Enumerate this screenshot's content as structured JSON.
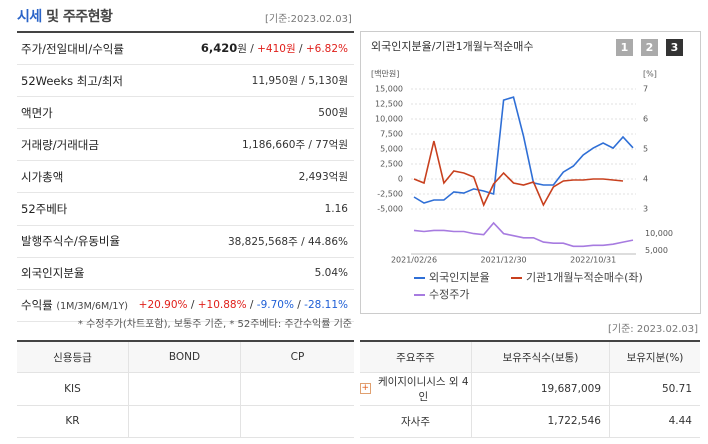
{
  "header": {
    "title_accent": "시세",
    "title_rest": "및 주주현황",
    "date": "[기준:2023.02.03]"
  },
  "summary": {
    "rows": [
      {
        "label": "주가/전일대비/수익률",
        "value": [
          {
            "text": "6,420",
            "bold": true
          },
          {
            "text": "원 / "
          },
          {
            "text": "+410원",
            "color": "#e0201b"
          },
          {
            "text": " / "
          },
          {
            "text": "+6.82%",
            "color": "#e0201b"
          }
        ]
      },
      {
        "label": "52Weeks 최고/최저",
        "value": [
          {
            "text": "11,950원 / 5,130원"
          }
        ]
      },
      {
        "label": "액면가",
        "value": [
          {
            "text": "500원"
          }
        ]
      },
      {
        "label": "거래량/거래대금",
        "value": [
          {
            "text": "1,186,660주 / 77억원"
          }
        ]
      },
      {
        "label": "시가총액",
        "value": [
          {
            "text": "2,493억원"
          }
        ]
      },
      {
        "label": "52주베타",
        "value": [
          {
            "text": "1.16"
          }
        ]
      },
      {
        "label": "발행주식수/유동비율",
        "value": [
          {
            "text": "38,825,568주 / 44.86%"
          }
        ]
      },
      {
        "label": "외국인지분율",
        "value": [
          {
            "text": "5.04%"
          }
        ]
      },
      {
        "label": "수익률",
        "label_note": "(1M/3M/6M/1Y)",
        "value": [
          {
            "text": "+20.90%",
            "color": "#e0201b"
          },
          {
            "text": " / "
          },
          {
            "text": "+10.88%",
            "color": "#e0201b"
          },
          {
            "text": " / "
          },
          {
            "text": "-9.70%",
            "color": "#1f5fd6"
          },
          {
            "text": " / "
          },
          {
            "text": "-28.11%",
            "color": "#1f5fd6"
          }
        ]
      }
    ],
    "footnote": "* 수정주가(차트포함), 보통주 기준, * 52주베타: 주간수익률 기준"
  },
  "panel": {
    "tabs": [
      "1",
      "2",
      "3"
    ],
    "active_tab": 2
  },
  "chart_data": [
    {
      "type": "line",
      "title": "외국인지분율/기관1개월누적순매수",
      "y_label": "[백만원]",
      "y2_label": "[%]",
      "categories": [
        "2021/02/26",
        null,
        null,
        null,
        null,
        null,
        null,
        null,
        null,
        "2021/12/30",
        null,
        null,
        null,
        null,
        null,
        null,
        null,
        null,
        "2022/10/31",
        null,
        null,
        null,
        null
      ],
      "ylim": [
        -5000,
        15000
      ],
      "yticks": [
        {
          "value": 15000,
          "label": "15,000"
        },
        {
          "value": 12500,
          "label": "12,500"
        },
        {
          "value": 10000,
          "label": "10,000"
        },
        {
          "value": 7500,
          "label": "7,500"
        },
        {
          "value": 5000,
          "label": "5,000"
        },
        {
          "value": 2500,
          "label": "2,500"
        },
        0,
        {
          "value": -2500,
          "label": "-2,500"
        },
        {
          "value": -5000,
          "label": "-5,000"
        }
      ],
      "y2lim": [
        3,
        7
      ],
      "y2ticks": [
        7,
        6,
        5,
        4,
        3
      ],
      "grid": true,
      "series": [
        {
          "name": "외국인지분율",
          "color": "#2f6fd6",
          "axis": "y2",
          "values": [
            3.4,
            3.2,
            3.3,
            3.3,
            3.57,
            3.53,
            3.67,
            3.6,
            3.5,
            6.63,
            6.73,
            5.43,
            3.87,
            3.8,
            3.8,
            4.23,
            4.43,
            4.8,
            5.03,
            5.2,
            5.03,
            5.4,
            5.04
          ]
        },
        {
          "name": "기관1개월누적순매수(좌)",
          "color": "#c8401e",
          "values": [
            0,
            -667,
            6333,
            -667,
            1333,
            1000,
            333,
            -4333,
            -833,
            1000,
            -667,
            -1000,
            -500,
            -4333,
            -1333,
            -333,
            -167,
            -167,
            0,
            0,
            -167,
            -333,
            null
          ]
        }
      ]
    },
    {
      "type": "line",
      "ylim": [
        4000,
        14000
      ],
      "yticks": [
        {
          "value": 10000,
          "label": "10,000"
        },
        {
          "value": 5000,
          "label": "5,000"
        }
      ],
      "series": [
        {
          "name": "수정주가",
          "color": "#a77be0",
          "values": [
            10938,
            10625,
            10938,
            10938,
            10625,
            10625,
            10000,
            9688,
            13125,
            10000,
            9375,
            8750,
            8750,
            7500,
            7188,
            7188,
            6250,
            6250,
            6563,
            6563,
            6875,
            7500,
            8100
          ]
        }
      ]
    }
  ],
  "credit": {
    "columns": [
      "신용등급",
      "BOND",
      "CP"
    ],
    "rows": [
      [
        "KIS",
        "",
        ""
      ],
      [
        "KR",
        "",
        ""
      ]
    ]
  },
  "holders": {
    "date": "[기준: 2023.02.03]",
    "columns": [
      "주요주주",
      "보유주식수(보통)",
      "보유지분(%)"
    ],
    "rows": [
      [
        "케이지이니시스 외 4인",
        "19,687,009",
        "50.71"
      ],
      [
        "자사주",
        "1,722,546",
        "4.44"
      ]
    ]
  }
}
